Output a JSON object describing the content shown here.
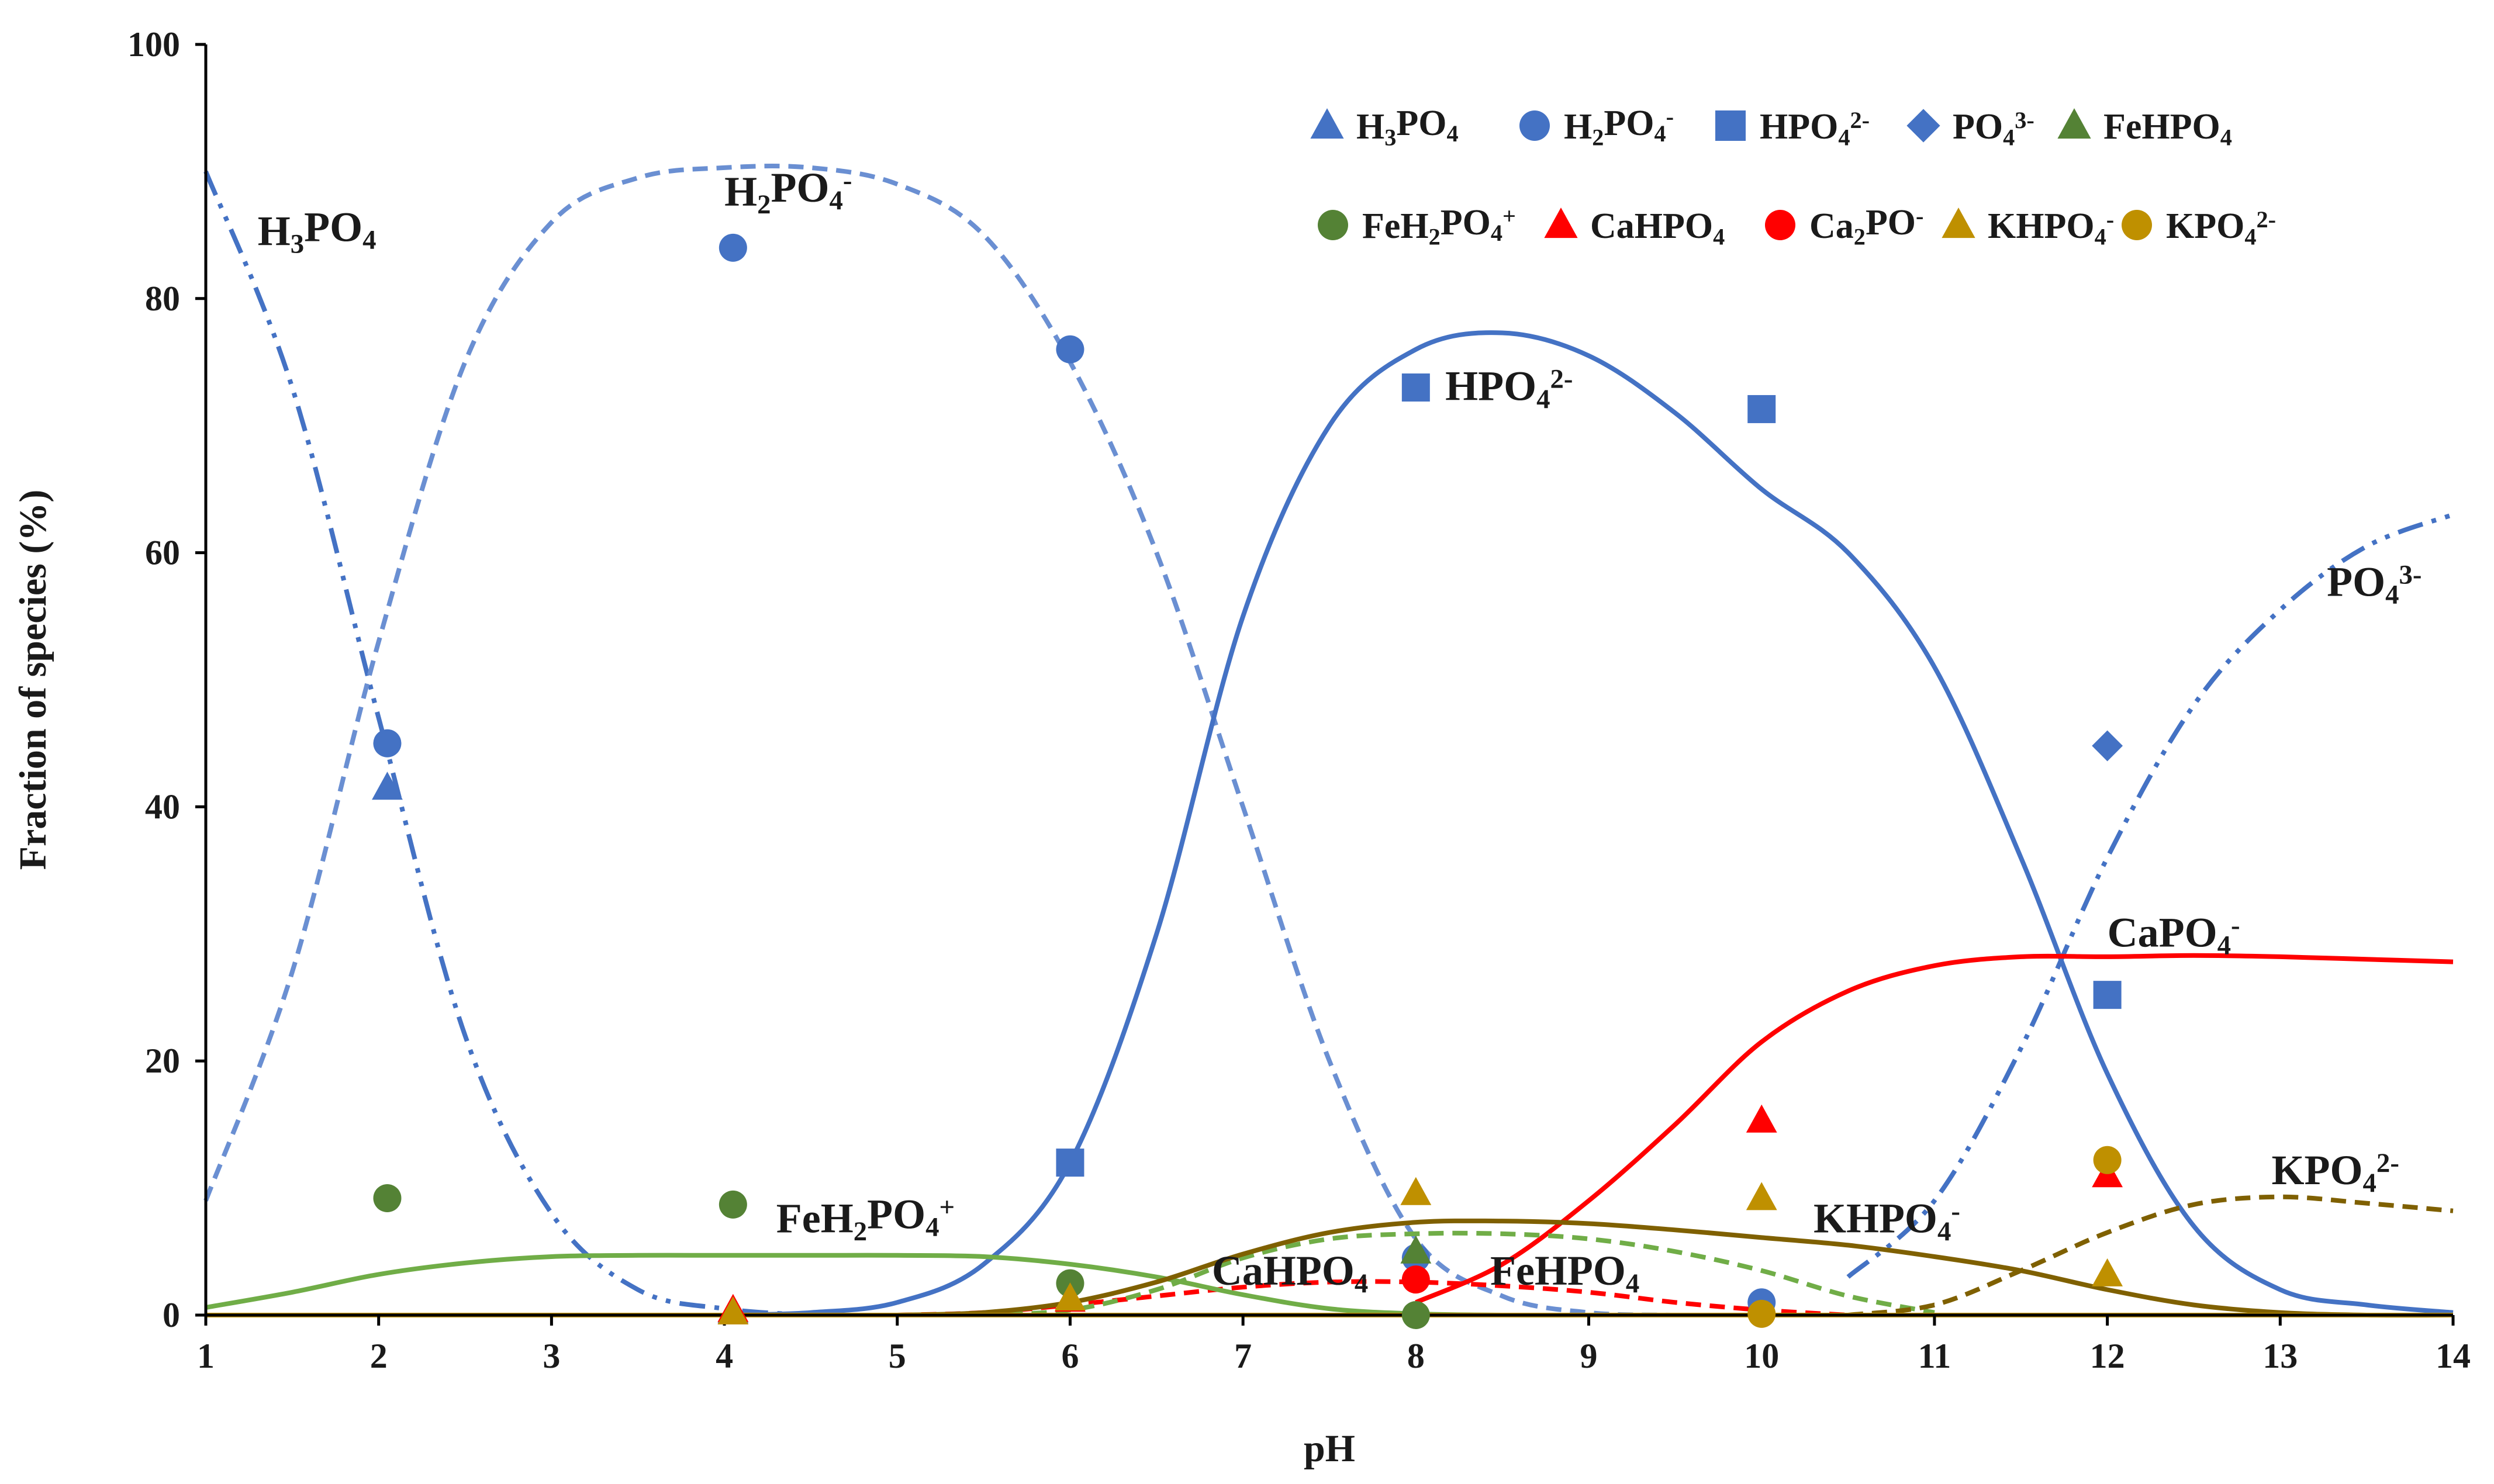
{
  "chart_data": {
    "type": "line",
    "title": "",
    "xlabel": "pH",
    "ylabel": "Fraction of species (%)",
    "xlim": [
      1,
      14
    ],
    "ylim": [
      0,
      100
    ],
    "xticks": [
      "1",
      "2",
      "3",
      "4",
      "5",
      "6",
      "7",
      "8",
      "9",
      "10",
      "11",
      "12",
      "13",
      "14"
    ],
    "yticks": [
      "0",
      "20",
      "40",
      "60",
      "80",
      "100"
    ],
    "grid": false,
    "legend_position": "top-right",
    "species": {
      "H3PO4": {
        "base": "H",
        "sub1": "3",
        "mid": "PO",
        "sub2": "4",
        "sup": ""
      },
      "H2PO4": {
        "base": "H",
        "sub1": "2",
        "mid": "PO",
        "sub2": "4",
        "sup": "-"
      },
      "HPO4": {
        "base": "",
        "sub1": "",
        "mid": "HPO",
        "sub2": "4",
        "sup": "2-"
      },
      "PO4": {
        "base": "",
        "sub1": "",
        "mid": "PO",
        "sub2": "4",
        "sup": "3-"
      },
      "FeHPO4": {
        "base": "",
        "sub1": "",
        "mid": "FeHPO",
        "sub2": "4",
        "sup": ""
      },
      "FeH2PO4": {
        "base": "FeH",
        "sub1": "2",
        "mid": "PO",
        "sub2": "4",
        "sup": "+"
      },
      "CaHPO4": {
        "base": "",
        "sub1": "",
        "mid": "CaHPO",
        "sub2": "4",
        "sup": ""
      },
      "Ca2PO": {
        "base": "Ca",
        "sub1": "2",
        "mid": "PO",
        "sub2": "",
        "sup": "-"
      },
      "KHPO4": {
        "base": "",
        "sub1": "",
        "mid": "KHPO",
        "sub2": "4",
        "sup": "-"
      },
      "KPO4": {
        "base": "",
        "sub1": "",
        "mid": "KPO",
        "sub2": "4",
        "sup": "2-"
      },
      "CaPO4": {
        "base": "",
        "sub1": "",
        "mid": "CaPO",
        "sub2": "4",
        "sup": "-"
      }
    },
    "legend": [
      {
        "species": "H3PO4",
        "marker": "triangle",
        "color": "#4472C4"
      },
      {
        "species": "H2PO4",
        "marker": "circle",
        "color": "#4472C4"
      },
      {
        "species": "HPO4",
        "marker": "square",
        "color": "#4472C4"
      },
      {
        "species": "PO4",
        "marker": "diamond",
        "color": "#4472C4"
      },
      {
        "species": "FeHPO4",
        "marker": "triangle",
        "color": "#548235"
      },
      {
        "species": "FeH2PO4",
        "marker": "circle",
        "color": "#548235"
      },
      {
        "species": "CaHPO4",
        "marker": "triangle",
        "color": "#FF0000"
      },
      {
        "species": "Ca2PO",
        "marker": "circle",
        "color": "#FF0000"
      },
      {
        "species": "KHPO4",
        "marker": "triangle",
        "color": "#BF9000"
      },
      {
        "species": "KPO4",
        "marker": "circle",
        "color": "#BF9000"
      }
    ],
    "curves": [
      {
        "name": "H3PO4",
        "color": "#4472C4",
        "dash": "dashdotdot",
        "x": [
          1,
          1.5,
          2,
          2.5,
          3,
          3.5,
          4,
          4.5
        ],
        "y": [
          90,
          73,
          47,
          22,
          8,
          2,
          0.5,
          0
        ]
      },
      {
        "name": "H2PO4-",
        "color": "#6A8FD2",
        "dash": "dash",
        "x": [
          1,
          1.5,
          2,
          2.5,
          3,
          3.5,
          4,
          4.5,
          5,
          5.5,
          6,
          6.5,
          7,
          7.5,
          8,
          8.5,
          9,
          9.5
        ],
        "y": [
          9,
          27,
          53,
          75,
          86,
          89.5,
          90.3,
          90.3,
          89,
          85,
          75,
          60,
          40,
          20,
          6,
          1.5,
          0.2,
          0
        ]
      },
      {
        "name": "HPO4 2-",
        "color": "#4472C4",
        "dash": "solid",
        "x": [
          4,
          4.5,
          5,
          5.5,
          6,
          6.5,
          7,
          7.5,
          8,
          8.5,
          9,
          9.5,
          10,
          10.5,
          11,
          11.5,
          12,
          12.5,
          13,
          13.5,
          14
        ],
        "y": [
          0,
          0.2,
          1,
          4,
          12,
          30,
          55,
          70,
          76,
          77.3,
          75.5,
          71,
          65,
          60,
          51,
          36,
          19,
          7,
          2,
          0.8,
          0.2
        ]
      },
      {
        "name": "PO4 3-",
        "color": "#4472C4",
        "dash": "dashdotdot",
        "x": [
          10.5,
          11,
          11.5,
          12,
          12.5,
          13,
          13.5,
          14
        ],
        "y": [
          3,
          9,
          21,
          36,
          48,
          55.5,
          60.5,
          63
        ]
      },
      {
        "name": "CaPO4-",
        "color": "#FF0000",
        "dash": "solid",
        "x": [
          8,
          8.5,
          9,
          9.5,
          10,
          10.5,
          11,
          11.5,
          12,
          12.5,
          13,
          13.5,
          14
        ],
        "y": [
          1,
          4,
          9,
          15,
          21.5,
          25.5,
          27.5,
          28.2,
          28.2,
          28.3,
          28.2,
          28,
          27.8
        ]
      },
      {
        "name": "CaHPO4",
        "color": "#FF0000",
        "dash": "dash",
        "x": [
          5,
          5.5,
          6,
          6.5,
          7,
          7.5,
          8,
          8.5,
          9,
          9.5,
          10,
          10.5
        ],
        "y": [
          0,
          0.2,
          0.8,
          1.5,
          2.2,
          2.6,
          2.6,
          2.3,
          1.8,
          1,
          0.4,
          0
        ]
      },
      {
        "name": "FeH2PO4+",
        "color": "#70AD47",
        "dash": "solid",
        "x": [
          1,
          1.5,
          2,
          2.5,
          3,
          3.5,
          4,
          4.5,
          5,
          5.5,
          6,
          6.5,
          7,
          7.5,
          8,
          8.5,
          9,
          10,
          14
        ],
        "y": [
          0.6,
          1.8,
          3.2,
          4.1,
          4.6,
          4.7,
          4.7,
          4.7,
          4.7,
          4.6,
          4,
          3,
          1.6,
          0.5,
          0.1,
          0,
          0,
          0,
          0
        ]
      },
      {
        "name": "FeHPO4",
        "color": "#70AD47",
        "dash": "dash",
        "x": [
          5.5,
          6,
          6.5,
          7,
          7.5,
          8,
          8.5,
          9,
          9.5,
          10,
          10.5,
          11
        ],
        "y": [
          0,
          0.4,
          2,
          4.5,
          6,
          6.4,
          6.4,
          6,
          5,
          3.5,
          1.5,
          0.2
        ]
      },
      {
        "name": "KHPO4-",
        "color": "#7F6000",
        "dash": "solid",
        "x": [
          5,
          5.5,
          6,
          6.5,
          7,
          7.5,
          8,
          8.5,
          9,
          9.5,
          10,
          10.5,
          11,
          11.5,
          12,
          12.5,
          13,
          13.5,
          14
        ],
        "y": [
          0,
          0.2,
          1,
          2.6,
          4.8,
          6.5,
          7.3,
          7.4,
          7.2,
          6.7,
          6.1,
          5.5,
          4.6,
          3.5,
          2,
          0.8,
          0.2,
          0,
          0
        ]
      },
      {
        "name": "KPO4 2-",
        "color": "#7F6000",
        "dash": "dash",
        "x": [
          10.5,
          11,
          11.5,
          12,
          12.5,
          13,
          13.5,
          14
        ],
        "y": [
          0,
          0.8,
          3.5,
          6.5,
          8.7,
          9.3,
          8.8,
          8.2
        ]
      },
      {
        "name": "baseline",
        "color": "#BF9000",
        "dash": "solid",
        "x": [
          1,
          14
        ],
        "y": [
          0,
          0
        ]
      }
    ],
    "points": [
      {
        "series": "H3PO4",
        "marker": "triangle",
        "color": "#4472C4",
        "x": 2.05,
        "y": 41.5
      },
      {
        "series": "H3PO4",
        "marker": "triangle",
        "color": "#4472C4",
        "x": 4.05,
        "y": 0.3
      },
      {
        "series": "H2PO4",
        "marker": "circle",
        "color": "#4472C4",
        "x": 2.05,
        "y": 45
      },
      {
        "series": "H2PO4",
        "marker": "circle",
        "color": "#4472C4",
        "x": 4.05,
        "y": 84
      },
      {
        "series": "H2PO4",
        "marker": "circle",
        "color": "#4472C4",
        "x": 6.0,
        "y": 76
      },
      {
        "series": "H2PO4",
        "marker": "circle",
        "color": "#4472C4",
        "x": 8.0,
        "y": 4.5
      },
      {
        "series": "H2PO4",
        "marker": "circle",
        "color": "#4472C4",
        "x": 10.0,
        "y": 1
      },
      {
        "series": "HPO4",
        "marker": "square",
        "color": "#4472C4",
        "x": 6.0,
        "y": 12
      },
      {
        "series": "HPO4",
        "marker": "square",
        "color": "#4472C4",
        "x": 8.0,
        "y": 73
      },
      {
        "series": "HPO4",
        "marker": "square",
        "color": "#4472C4",
        "x": 10.0,
        "y": 71.3
      },
      {
        "series": "HPO4",
        "marker": "square",
        "color": "#4472C4",
        "x": 12.0,
        "y": 25.2
      },
      {
        "series": "PO4",
        "marker": "diamond",
        "color": "#4472C4",
        "x": 12.0,
        "y": 44.8
      },
      {
        "series": "FeHPO4",
        "marker": "triangle",
        "color": "#548235",
        "x": 8.0,
        "y": 5
      },
      {
        "series": "FeH2PO4",
        "marker": "circle",
        "color": "#548235",
        "x": 2.05,
        "y": 9.2
      },
      {
        "series": "FeH2PO4",
        "marker": "circle",
        "color": "#548235",
        "x": 4.05,
        "y": 8.7
      },
      {
        "series": "FeH2PO4",
        "marker": "circle",
        "color": "#548235",
        "x": 6.0,
        "y": 2.5
      },
      {
        "series": "FeH2PO4",
        "marker": "circle",
        "color": "#548235",
        "x": 8.0,
        "y": 0
      },
      {
        "series": "CaHPO4",
        "marker": "triangle",
        "color": "#FF0000",
        "x": 4.05,
        "y": 0.4
      },
      {
        "series": "CaHPO4",
        "marker": "triangle",
        "color": "#FF0000",
        "x": 6.0,
        "y": 1.2
      },
      {
        "series": "CaHPO4",
        "marker": "triangle",
        "color": "#FF0000",
        "x": 10.0,
        "y": 15.3
      },
      {
        "series": "CaHPO4",
        "marker": "triangle",
        "color": "#FF0000",
        "x": 12.0,
        "y": 11
      },
      {
        "series": "Ca2PO",
        "marker": "circle",
        "color": "#FF0000",
        "x": 8.0,
        "y": 2.8
      },
      {
        "series": "KHPO4",
        "marker": "triangle",
        "color": "#BF9000",
        "x": 4.05,
        "y": 0.2
      },
      {
        "series": "KHPO4",
        "marker": "triangle",
        "color": "#BF9000",
        "x": 6.0,
        "y": 1.3
      },
      {
        "series": "KHPO4",
        "marker": "triangle",
        "color": "#BF9000",
        "x": 8.0,
        "y": 9.6
      },
      {
        "series": "KHPO4",
        "marker": "triangle",
        "color": "#BF9000",
        "x": 10.0,
        "y": 9.2
      },
      {
        "series": "KHPO4",
        "marker": "triangle",
        "color": "#BF9000",
        "x": 12.0,
        "y": 3.2
      },
      {
        "series": "KPO4",
        "marker": "circle",
        "color": "#BF9000",
        "x": 10.0,
        "y": 0.1
      },
      {
        "series": "KPO4",
        "marker": "circle",
        "color": "#BF9000",
        "x": 12.0,
        "y": 12.2
      }
    ],
    "annotations": [
      {
        "species": "H3PO4",
        "x": 1.3,
        "y": 84.2
      },
      {
        "species": "H2PO4",
        "x": 4.0,
        "y": 87.3
      },
      {
        "species": "HPO4",
        "x": 8.17,
        "y": 72.0
      },
      {
        "species": "PO4",
        "x": 13.27,
        "y": 56.6
      },
      {
        "species": "CaPO4",
        "x": 12.0,
        "y": 29.0
      },
      {
        "species": "KPO4",
        "x": 12.95,
        "y": 10.3
      },
      {
        "species": "FeH2PO4",
        "x": 4.3,
        "y": 6.5
      },
      {
        "species": "KHPO4",
        "x": 10.3,
        "y": 6.5
      },
      {
        "species": "CaHPO4",
        "x": 6.82,
        "y": 2.4
      },
      {
        "species": "FeHPO4",
        "x": 8.43,
        "y": 2.4
      }
    ]
  }
}
